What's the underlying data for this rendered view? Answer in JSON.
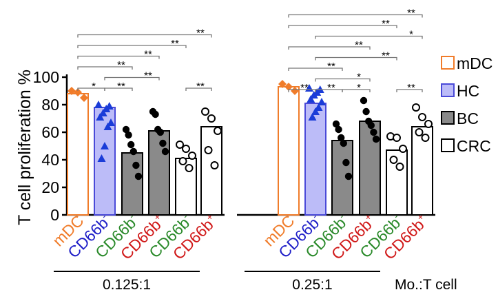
{
  "chart_data": {
    "type": "bar",
    "ylabel": "T cell proliferation %",
    "ylim": [
      0,
      100
    ],
    "yticks": [
      0,
      20,
      40,
      60,
      80,
      100
    ],
    "grid": false,
    "legend_position": "right",
    "ratio_axis_label": "Mo.:T cell",
    "legend": [
      {
        "key": "mDC",
        "label": "mDC",
        "fill": "#ffffff",
        "stroke": "#f07c2a"
      },
      {
        "key": "HC",
        "label": "HC",
        "fill": "#bcbcf8",
        "stroke": "#4a4ad8"
      },
      {
        "key": "BC",
        "label": "BC",
        "fill": "#8a8a8a",
        "stroke": "#000000"
      },
      {
        "key": "CRC",
        "label": "CRC",
        "fill": "#ffffff",
        "stroke": "#000000"
      }
    ],
    "categories": [
      {
        "base": "mDC",
        "sup": "",
        "color": "#f07c2a"
      },
      {
        "base": "CD66b",
        "sup": "-",
        "color": "#2020c8"
      },
      {
        "base": "CD66b",
        "sup": "-",
        "color": "#2a8a2a"
      },
      {
        "base": "CD66b",
        "sup": "+",
        "color": "#d01818"
      },
      {
        "base": "CD66b",
        "sup": "-",
        "color": "#2a8a2a"
      },
      {
        "base": "CD66b",
        "sup": "+",
        "color": "#d01818"
      }
    ],
    "bar_groups": [
      "mDC",
      "HC",
      "BC",
      "BC",
      "CRC",
      "CRC"
    ],
    "point_colors": [
      "#f07c2a",
      "#1a3cd8",
      "#000000",
      "#000000",
      "#000000",
      "#000000"
    ],
    "panels": [
      {
        "ratio": "0.125:1",
        "bar_values": [
          88,
          78,
          45,
          61,
          41,
          64
        ],
        "points": [
          [
            90,
            89,
            85
          ],
          [
            80,
            79,
            77,
            74,
            71,
            67,
            64,
            50,
            41
          ],
          [
            62,
            58,
            51,
            46,
            36,
            28
          ],
          [
            75,
            73,
            62,
            60,
            52,
            46
          ],
          [
            51,
            48,
            43,
            39,
            34
          ],
          [
            75,
            70,
            61,
            47,
            36
          ]
        ],
        "comparisons": [
          {
            "from": 1,
            "to": 2,
            "label": "**"
          },
          {
            "from": 1,
            "to": 3,
            "label": "**"
          },
          {
            "from": 0,
            "to": 1,
            "label": "*"
          },
          {
            "from": 0,
            "to": 2,
            "label": "**"
          },
          {
            "from": 0,
            "to": 3,
            "label": "**"
          },
          {
            "from": 0,
            "to": 4,
            "label": "**"
          },
          {
            "from": 0,
            "to": 5,
            "label": "**"
          },
          {
            "from": 4,
            "to": 5,
            "label": "**"
          }
        ]
      },
      {
        "ratio": "0.25:1",
        "bar_values": [
          93,
          81,
          54,
          68,
          47,
          64
        ],
        "points": [
          [
            95,
            93,
            90
          ],
          [
            92,
            91,
            89,
            87,
            84,
            82,
            78,
            75,
            71
          ],
          [
            66,
            62,
            56,
            52,
            38,
            28
          ],
          [
            83,
            75,
            68,
            65,
            60,
            55
          ],
          [
            57,
            56,
            48,
            40,
            35
          ],
          [
            78,
            71,
            66,
            60,
            56
          ]
        ],
        "comparisons": [
          {
            "from": 2,
            "to": 3,
            "label": "*"
          },
          {
            "from": 1,
            "to": 2,
            "label": "**"
          },
          {
            "from": 1,
            "to": 3,
            "label": "*"
          },
          {
            "from": 1,
            "to": 4,
            "label": "**"
          },
          {
            "from": 1,
            "to": 5,
            "label": "*"
          },
          {
            "from": 0,
            "to": 1,
            "label": "**"
          },
          {
            "from": 0,
            "to": 2,
            "label": "**"
          },
          {
            "from": 0,
            "to": 3,
            "label": "**"
          },
          {
            "from": 0,
            "to": 4,
            "label": "**"
          },
          {
            "from": 0,
            "to": 5,
            "label": "**"
          },
          {
            "from": 4,
            "to": 5,
            "label": "**"
          }
        ]
      }
    ]
  }
}
